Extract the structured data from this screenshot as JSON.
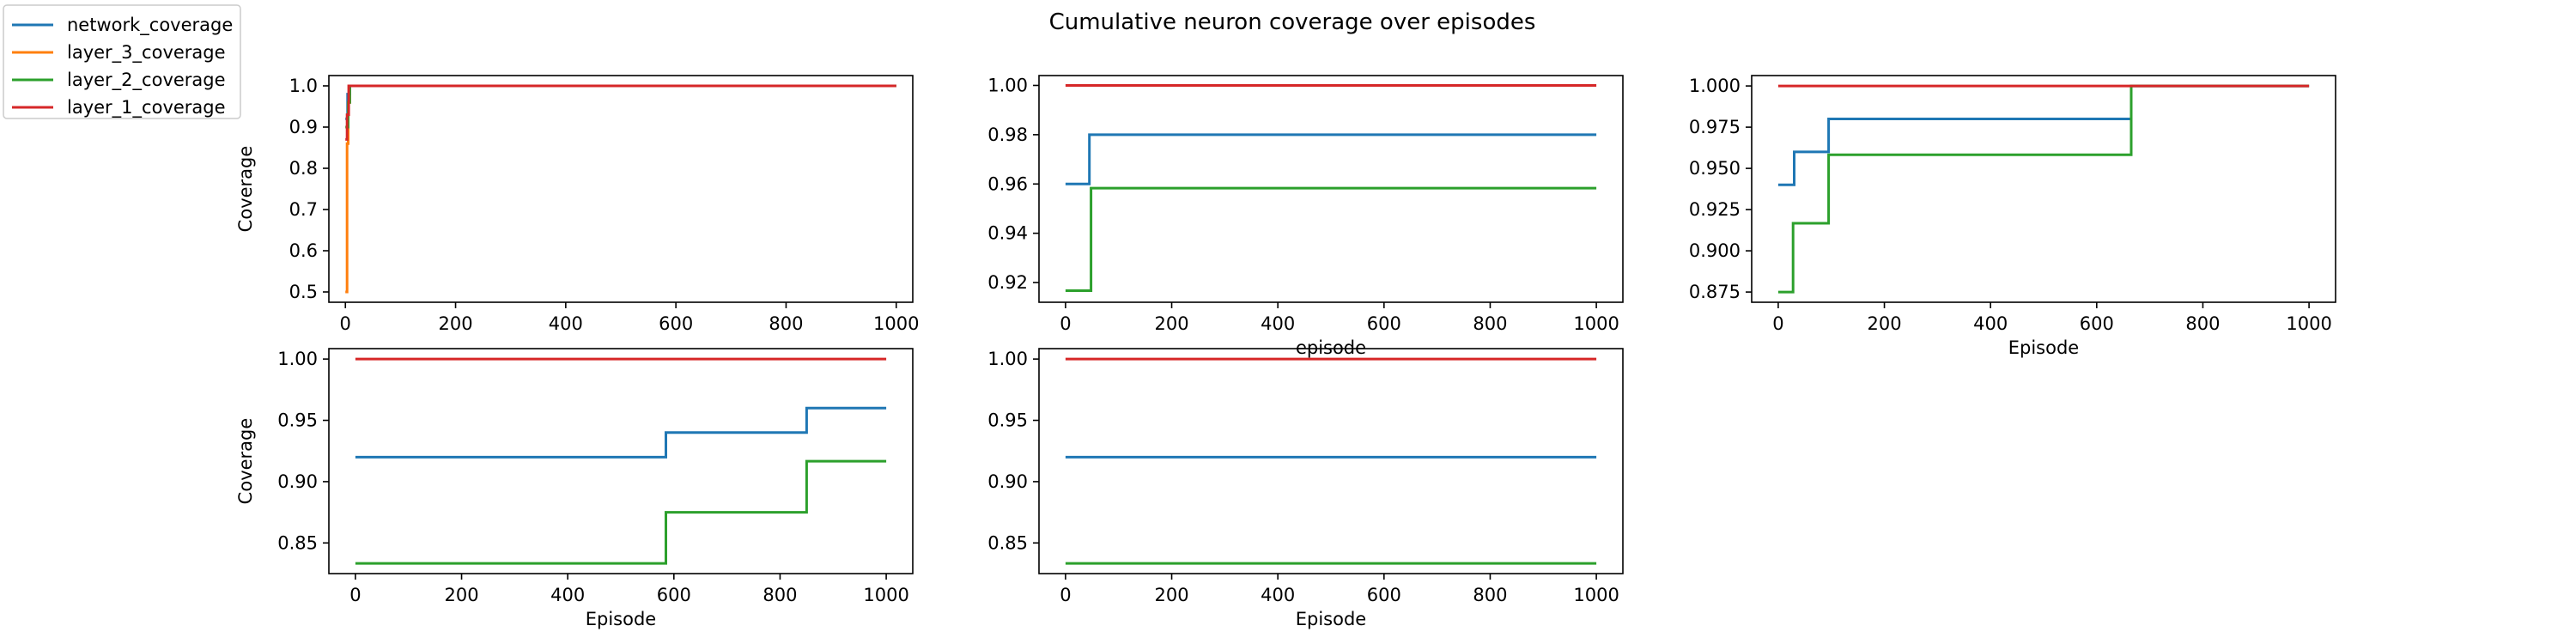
{
  "figure": {
    "title": "Cumulative neuron coverage over episodes"
  },
  "legend": {
    "placement": "top-left",
    "entries": [
      {
        "name": "network_coverage",
        "color": "#1f77b4"
      },
      {
        "name": "layer_3_coverage",
        "color": "#ff7f0e"
      },
      {
        "name": "layer_2_coverage",
        "color": "#2ca02c"
      },
      {
        "name": "layer_1_coverage",
        "color": "#d62728"
      }
    ]
  },
  "chart_data": [
    {
      "type": "line",
      "xlabel": "",
      "ylabel": "Coverage",
      "xlim": [
        -30,
        1030
      ],
      "ylim": [
        0.475,
        1.025
      ],
      "xticks": [
        "0",
        "200",
        "400",
        "600",
        "800",
        "1000"
      ],
      "yticks": [
        "0.5",
        "0.6",
        "0.7",
        "0.8",
        "0.9",
        "1.0"
      ],
      "series": [
        {
          "name": "layer_3_coverage",
          "color": "#ff7f0e",
          "step": true,
          "points": [
            [
              0,
              0.5
            ],
            [
              3,
              0.86
            ],
            [
              5,
              0.96
            ],
            [
              8,
              1.0
            ],
            [
              1000,
              1.0
            ]
          ]
        },
        {
          "name": "network_coverage",
          "color": "#1f77b4",
          "step": true,
          "points": [
            [
              0,
              0.92
            ],
            [
              4,
              0.98
            ],
            [
              8,
              1.0
            ],
            [
              1000,
              1.0
            ]
          ]
        },
        {
          "name": "layer_2_coverage",
          "color": "#2ca02c",
          "step": true,
          "points": [
            [
              0,
              0.9
            ],
            [
              5,
              0.96
            ],
            [
              8,
              1.0
            ],
            [
              1000,
              1.0
            ]
          ]
        },
        {
          "name": "layer_1_coverage",
          "color": "#d62728",
          "step": true,
          "points": [
            [
              0,
              0.87
            ],
            [
              3,
              0.93
            ],
            [
              6,
              1.0
            ],
            [
              1000,
              1.0
            ]
          ]
        }
      ]
    },
    {
      "type": "line",
      "xlabel": "episode",
      "ylabel": "",
      "xlim": [
        -50,
        1050
      ],
      "ylim": [
        0.912,
        1.004
      ],
      "xticks": [
        "0",
        "200",
        "400",
        "600",
        "800",
        "1000"
      ],
      "yticks": [
        "0.92",
        "0.94",
        "0.96",
        "0.98",
        "1.00"
      ],
      "series": [
        {
          "name": "network_coverage",
          "color": "#1f77b4",
          "step": true,
          "points": [
            [
              0,
              0.96
            ],
            [
              45,
              0.98
            ],
            [
              1000,
              0.98
            ]
          ]
        },
        {
          "name": "layer_2_coverage",
          "color": "#2ca02c",
          "step": true,
          "points": [
            [
              0,
              0.9167
            ],
            [
              48,
              0.9583
            ],
            [
              1000,
              0.9583
            ]
          ]
        },
        {
          "name": "layer_1_coverage",
          "color": "#d62728",
          "step": true,
          "points": [
            [
              0,
              1.0
            ],
            [
              1000,
              1.0
            ]
          ]
        }
      ]
    },
    {
      "type": "line",
      "xlabel": "Episode",
      "ylabel": "",
      "xlim": [
        -50,
        1050
      ],
      "ylim": [
        0.8688,
        1.0063
      ],
      "xticks": [
        "0",
        "200",
        "400",
        "600",
        "800",
        "1000"
      ],
      "yticks": [
        "0.875",
        "0.900",
        "0.925",
        "0.950",
        "0.975",
        "1.000"
      ],
      "series": [
        {
          "name": "network_coverage",
          "color": "#1f77b4",
          "step": true,
          "points": [
            [
              0,
              0.94
            ],
            [
              30,
              0.96
            ],
            [
              95,
              0.98
            ],
            [
              665,
              1.0
            ],
            [
              1000,
              1.0
            ]
          ]
        },
        {
          "name": "layer_2_coverage",
          "color": "#2ca02c",
          "step": true,
          "points": [
            [
              0,
              0.875
            ],
            [
              28,
              0.9167
            ],
            [
              95,
              0.9583
            ],
            [
              665,
              1.0
            ],
            [
              1000,
              1.0
            ]
          ]
        },
        {
          "name": "layer_1_coverage",
          "color": "#d62728",
          "step": true,
          "points": [
            [
              0,
              1.0
            ],
            [
              1000,
              1.0
            ]
          ]
        }
      ]
    },
    {
      "type": "line",
      "xlabel": "Episode",
      "ylabel": "Coverage",
      "xlim": [
        -50,
        1050
      ],
      "ylim": [
        0.825,
        1.0085
      ],
      "xticks": [
        "0",
        "200",
        "400",
        "600",
        "800",
        "1000"
      ],
      "yticks": [
        "0.85",
        "0.90",
        "0.95",
        "1.00"
      ],
      "series": [
        {
          "name": "network_coverage",
          "color": "#1f77b4",
          "step": true,
          "points": [
            [
              0,
              0.92
            ],
            [
              585,
              0.94
            ],
            [
              850,
              0.96
            ],
            [
              1000,
              0.96
            ]
          ]
        },
        {
          "name": "layer_2_coverage",
          "color": "#2ca02c",
          "step": true,
          "points": [
            [
              0,
              0.8333
            ],
            [
              585,
              0.875
            ],
            [
              850,
              0.9167
            ],
            [
              1000,
              0.9167
            ]
          ]
        },
        {
          "name": "layer_1_coverage",
          "color": "#d62728",
          "step": true,
          "points": [
            [
              0,
              1.0
            ],
            [
              1000,
              1.0
            ]
          ]
        }
      ]
    },
    {
      "type": "line",
      "xlabel": "Episode",
      "ylabel": "",
      "xlim": [
        -50,
        1050
      ],
      "ylim": [
        0.825,
        1.0085
      ],
      "xticks": [
        "0",
        "200",
        "400",
        "600",
        "800",
        "1000"
      ],
      "yticks": [
        "0.85",
        "0.90",
        "0.95",
        "1.00"
      ],
      "series": [
        {
          "name": "network_coverage",
          "color": "#1f77b4",
          "step": true,
          "points": [
            [
              0,
              0.92
            ],
            [
              1000,
              0.92
            ]
          ]
        },
        {
          "name": "layer_2_coverage",
          "color": "#2ca02c",
          "step": true,
          "points": [
            [
              0,
              0.8333
            ],
            [
              1000,
              0.8333
            ]
          ]
        },
        {
          "name": "layer_1_coverage",
          "color": "#d62728",
          "step": true,
          "points": [
            [
              0,
              1.0
            ],
            [
              1000,
              1.0
            ]
          ]
        }
      ]
    }
  ]
}
